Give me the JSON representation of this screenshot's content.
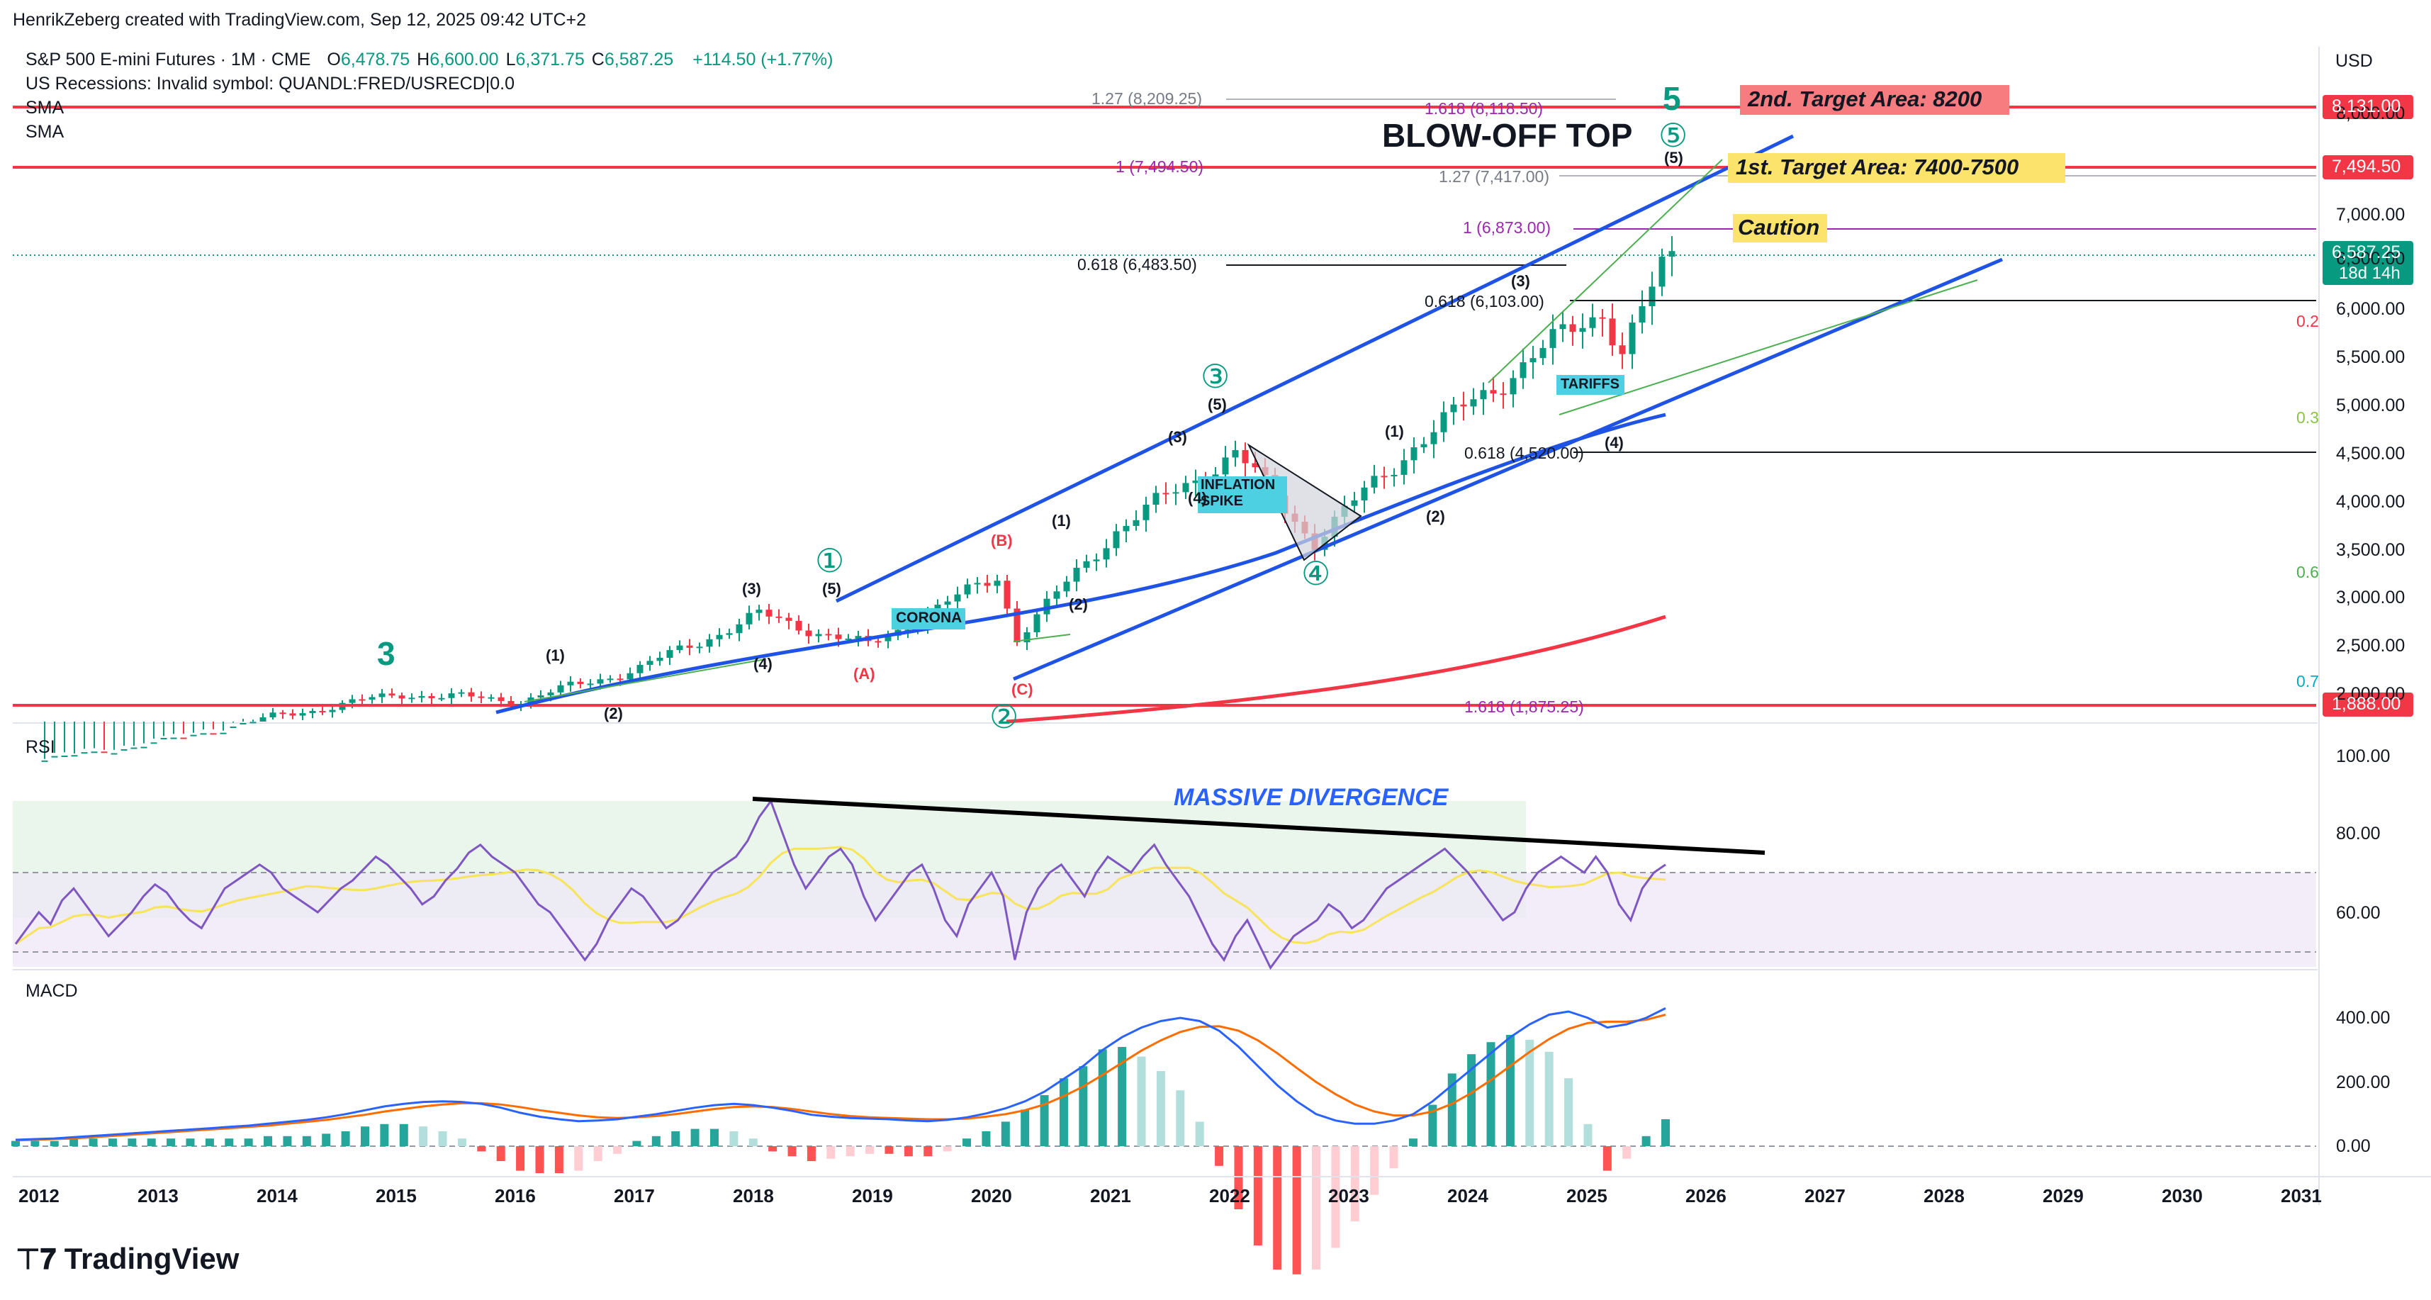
{
  "header": {
    "author_line": "HenrikZeberg created with TradingView.com, Sep 12, 2025 09:42 UTC+2",
    "symbol_name": "S&P 500 E-mini Futures · 1M · CME",
    "ohlc": [
      {
        "key": "O",
        "value": "6,478.75"
      },
      {
        "key": "H",
        "value": "6,600.00"
      },
      {
        "key": "L",
        "value": "6,371.75"
      },
      {
        "key": "C",
        "value": "6,587.25"
      }
    ],
    "change": "+114.50 (+1.77%)",
    "recession_line": "US Recessions: Invalid symbol: QUANDL:FRED/USRECD|0.0",
    "sma_labels": [
      "SMA",
      "SMA"
    ],
    "currency": "USD"
  },
  "colors": {
    "up": "#089981",
    "down": "#f23645",
    "channel": "#1e53e5",
    "red_line": "#f23645",
    "rsi": "#7e57c2",
    "rsi_ma": "#f7e45a",
    "macd": "#2962ff",
    "signal": "#ff6d00",
    "fib_purple": "#9c27b0",
    "wave_green": "#089981"
  },
  "annotations": {
    "blow_off_top": "BLOW-OFF TOP",
    "target2": "2nd. Target Area: 8200",
    "target1": "1st. Target Area: 7400-7500",
    "caution": "Caution",
    "massive_divergence": "MASSIVE DIVERGENCE",
    "corona": "CORONA",
    "inflation_spike": "INFLATION\nSPIKE",
    "tariffs": "TARIFFS",
    "big_wave_5": "5",
    "big_wave_3": "3",
    "circle_waves": [
      "①",
      "②",
      "③",
      "④",
      "⑤"
    ],
    "sub_waves": [
      "(1)",
      "(2)",
      "(3)",
      "(4)",
      "(5)",
      "(A)",
      "(B)",
      "(C)"
    ],
    "fib_labels": [
      "1.27 (8,209.25)",
      "1.618 (8,118.50)",
      "1 (7,494.50)",
      "1.27 (7,417.00)",
      "1 (6,873.00)",
      "0.618 (6,483.50)",
      "0.618 (6,103.00)",
      "0.618 (4,520.00)",
      "1.618 (1,875.25)"
    ],
    "edge_fib_labels": [
      "0.2",
      "0.3",
      "0.6",
      "0.7"
    ]
  },
  "chart_data": {
    "type": "candlestick",
    "title": "S&P 500 E-mini Futures · 1M · CME",
    "ylabel": "USD",
    "ylim": [
      1800,
      8500
    ],
    "y_ticks": [
      "8,000.00",
      "7,000.00",
      "6,500.00",
      "6,000.00",
      "5,500.00",
      "5,000.00",
      "4,500.00",
      "4,000.00",
      "3,500.00",
      "3,000.00",
      "2,500.00",
      "2,000.00"
    ],
    "x_ticks": [
      "2012",
      "2013",
      "2014",
      "2015",
      "2016",
      "2017",
      "2018",
      "2019",
      "2020",
      "2021",
      "2022",
      "2023",
      "2024",
      "2025",
      "2026",
      "2027",
      "2028",
      "2029",
      "2030",
      "2031"
    ],
    "price_tags": [
      {
        "value": "8,131.00",
        "bg": "#f23645"
      },
      {
        "value": "7,494.50",
        "bg": "#f23645"
      },
      {
        "value": "6,587.25",
        "sub": "18d 14h",
        "bg": "#089981"
      },
      {
        "value": "1,888.00",
        "bg": "#f23645"
      }
    ],
    "horizontal_levels": [
      8131.0,
      7494.5,
      6587.25,
      1888.0
    ],
    "candles_anchor": [
      {
        "t": "2012-01",
        "c": 1310
      },
      {
        "t": "2013-01",
        "c": 1500
      },
      {
        "t": "2014-01",
        "c": 1780
      },
      {
        "t": "2015-01",
        "c": 2000
      },
      {
        "t": "2016-01",
        "c": 1930
      },
      {
        "t": "2017-01",
        "c": 2270
      },
      {
        "t": "2018-01",
        "c": 2820
      },
      {
        "t": "2018-12",
        "c": 2500
      },
      {
        "t": "2020-01",
        "c": 3225
      },
      {
        "t": "2020-03",
        "c": 2580
      },
      {
        "t": "2021-01",
        "c": 3710
      },
      {
        "t": "2022-01",
        "c": 4510
      },
      {
        "t": "2022-09",
        "c": 3590
      },
      {
        "t": "2023-07",
        "c": 4590
      },
      {
        "t": "2024-07",
        "c": 5500
      },
      {
        "t": "2025-02",
        "c": 6000
      },
      {
        "t": "2025-04",
        "c": 5560
      },
      {
        "t": "2025-09",
        "c": 6587.25
      }
    ],
    "rsi": {
      "label": "RSI",
      "y_ticks": [
        "100.00",
        "80.00",
        "60.00"
      ],
      "band": [
        50,
        70
      ],
      "series": [
        52,
        56,
        60,
        57,
        63,
        66,
        62,
        58,
        54,
        57,
        60,
        64,
        67,
        65,
        61,
        58,
        56,
        61,
        66,
        68,
        70,
        72,
        70,
        66,
        64,
        62,
        60,
        63,
        66,
        68,
        71,
        74,
        72,
        69,
        66,
        62,
        64,
        68,
        71,
        75,
        77,
        74,
        72,
        70,
        66,
        62,
        60,
        56,
        52,
        48,
        52,
        58,
        62,
        66,
        64,
        60,
        56,
        58,
        62,
        66,
        70,
        72,
        74,
        78,
        84,
        88,
        80,
        72,
        66,
        70,
        74,
        76,
        72,
        64,
        58,
        62,
        66,
        70,
        72,
        66,
        58,
        54,
        62,
        66,
        70,
        64,
        48,
        60,
        66,
        70,
        72,
        68,
        64,
        70,
        74,
        72,
        70,
        74,
        77,
        72,
        68,
        64,
        58,
        52,
        48,
        54,
        58,
        52,
        46,
        50,
        54,
        56,
        58,
        62,
        60,
        56,
        58,
        62,
        66,
        68,
        70,
        72,
        74,
        76,
        73,
        70,
        66,
        62,
        58,
        60,
        66,
        70,
        72,
        74,
        72,
        70,
        74,
        70,
        62,
        58,
        66,
        70,
        72
      ]
    },
    "macd": {
      "label": "MACD",
      "y_ticks": [
        "400.00",
        "200.00",
        "0.00"
      ],
      "macd": [
        20,
        22,
        24,
        28,
        32,
        36,
        40,
        44,
        48,
        52,
        56,
        60,
        64,
        70,
        76,
        82,
        90,
        100,
        112,
        124,
        132,
        138,
        140,
        138,
        132,
        120,
        104,
        92,
        84,
        78,
        80,
        84,
        92,
        100,
        110,
        120,
        128,
        132,
        128,
        120,
        110,
        98,
        92,
        88,
        86,
        84,
        80,
        78,
        82,
        90,
        102,
        118,
        140,
        170,
        210,
        250,
        300,
        340,
        370,
        390,
        400,
        390,
        360,
        310,
        250,
        190,
        140,
        100,
        80,
        70,
        70,
        80,
        100,
        140,
        190,
        240,
        290,
        340,
        380,
        410,
        420,
        400,
        370,
        380,
        400,
        430
      ],
      "signal": [
        18,
        20,
        22,
        24,
        28,
        32,
        36,
        40,
        44,
        48,
        52,
        56,
        60,
        64,
        70,
        76,
        82,
        90,
        98,
        108,
        116,
        124,
        130,
        134,
        134,
        130,
        122,
        112,
        104,
        96,
        90,
        88,
        90,
        94,
        100,
        108,
        116,
        122,
        124,
        122,
        116,
        108,
        100,
        94,
        90,
        88,
        86,
        84,
        84,
        86,
        92,
        100,
        112,
        130,
        156,
        186,
        222,
        260,
        298,
        330,
        356,
        372,
        374,
        360,
        330,
        290,
        244,
        200,
        162,
        130,
        108,
        96,
        96,
        108,
        132,
        166,
        206,
        250,
        294,
        334,
        366,
        384,
        388,
        388,
        394,
        410
      ]
    }
  }
}
